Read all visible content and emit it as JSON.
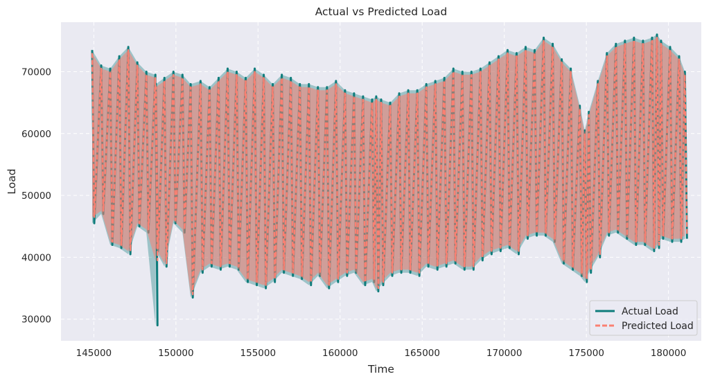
{
  "chart_data": {
    "type": "line",
    "title": "Actual vs Predicted Load",
    "xlabel": "Time",
    "ylabel": "Load",
    "xlim": [
      143000,
      182000
    ],
    "ylim": [
      26500,
      78000
    ],
    "xticks": [
      145000,
      150000,
      155000,
      160000,
      165000,
      170000,
      175000,
      180000
    ],
    "yticks": [
      30000,
      40000,
      50000,
      60000,
      70000
    ],
    "grid": true,
    "legend_position": "bottom-right",
    "series": [
      {
        "name": "Actual Load",
        "color": "#0e7c7b",
        "style": "solid",
        "x": [
          144900,
          145450,
          146000,
          146550,
          147100,
          147650,
          148200,
          148750,
          148780,
          149300,
          149850,
          150400,
          150900,
          151500,
          152050,
          152600,
          153150,
          153700,
          154250,
          154800,
          155350,
          155900,
          156450,
          157000,
          157550,
          158100,
          158650,
          159200,
          159750,
          160300,
          160850,
          161400,
          161950,
          162200,
          162500,
          163050,
          163600,
          164150,
          164700,
          165250,
          165800,
          166350,
          166900,
          167450,
          168000,
          168550,
          169100,
          169650,
          170200,
          170750,
          171300,
          171850,
          172400,
          172950,
          173500,
          174050,
          174600,
          174900,
          175150,
          175700,
          176250,
          176800,
          177350,
          177900,
          178450,
          179000,
          179300,
          179550,
          180100,
          180650,
          181000
        ],
        "low": [
          45500,
          47000,
          42000,
          41500,
          40500,
          45000,
          44000,
          29000,
          41000,
          38500,
          45500,
          44000,
          33500,
          37500,
          38500,
          38000,
          38500,
          38000,
          36000,
          35500,
          35000,
          36000,
          37500,
          37000,
          36500,
          35500,
          37000,
          35000,
          36000,
          37000,
          37500,
          35500,
          36000,
          34500,
          35500,
          37000,
          37500,
          37500,
          37000,
          38500,
          38000,
          38500,
          39000,
          38000,
          38000,
          39500,
          40500,
          41000,
          41500,
          40500,
          43000,
          43500,
          43500,
          42500,
          39000,
          38000,
          37000,
          36000,
          37500,
          40000,
          43500,
          44000,
          43000,
          42000,
          42000,
          41000,
          41500,
          43000,
          42500,
          42500,
          43000
        ],
        "high": [
          73500,
          71000,
          70500,
          72500,
          74000,
          71500,
          70000,
          69500,
          68000,
          69000,
          70000,
          69500,
          68000,
          68500,
          67500,
          69000,
          70500,
          70000,
          69000,
          70500,
          69500,
          68000,
          69500,
          69000,
          68000,
          68000,
          67500,
          67500,
          68500,
          67000,
          66500,
          66000,
          65500,
          66000,
          65500,
          65000,
          66500,
          67000,
          67000,
          68000,
          68500,
          69000,
          70500,
          70000,
          70000,
          70500,
          71500,
          72500,
          73500,
          73000,
          74000,
          73500,
          75500,
          74500,
          72000,
          70500,
          64500,
          60500,
          63500,
          68500,
          73000,
          74500,
          75000,
          75500,
          75000,
          75500,
          76000,
          75000,
          74000,
          72500,
          70000
        ]
      },
      {
        "name": "Predicted Load",
        "color": "#fa8072",
        "style": "dashed",
        "x": [
          144900,
          145450,
          146000,
          146550,
          147100,
          147650,
          148200,
          148750,
          148780,
          149300,
          149850,
          150400,
          150900,
          151500,
          152050,
          152600,
          153150,
          153700,
          154250,
          154800,
          155350,
          155900,
          156450,
          157000,
          157550,
          158100,
          158650,
          159200,
          159750,
          160300,
          160850,
          161400,
          161950,
          162200,
          162500,
          163050,
          163600,
          164150,
          164700,
          165250,
          165800,
          166350,
          166900,
          167450,
          168000,
          168550,
          169100,
          169650,
          170200,
          170750,
          171300,
          171850,
          172400,
          172950,
          173500,
          174050,
          174600,
          174900,
          175150,
          175700,
          176250,
          176800,
          177350,
          177900,
          178450,
          179000,
          179300,
          179550,
          180100,
          180650,
          181000
        ],
        "low": [
          46500,
          47500,
          42500,
          42000,
          41000,
          45500,
          44500,
          39500,
          41500,
          39000,
          46000,
          44500,
          34000,
          38000,
          39000,
          38500,
          39000,
          38500,
          36500,
          36000,
          35500,
          36500,
          38000,
          37500,
          37000,
          36000,
          37500,
          35500,
          36500,
          37500,
          38000,
          36000,
          36500,
          35000,
          36000,
          37500,
          38000,
          38000,
          37500,
          39000,
          38500,
          39000,
          39500,
          38500,
          38500,
          40000,
          41000,
          41500,
          42000,
          41000,
          43500,
          44000,
          44000,
          43000,
          39500,
          38500,
          37500,
          36500,
          38000,
          40500,
          44000,
          44500,
          43500,
          42500,
          42500,
          41500,
          42000,
          43500,
          43000,
          43000,
          43500
        ],
        "high": [
          73000,
          70500,
          70000,
          72000,
          73500,
          71000,
          69500,
          69000,
          67500,
          68500,
          69500,
          69000,
          67500,
          68000,
          67000,
          68500,
          70000,
          69500,
          68500,
          70000,
          69000,
          67500,
          69000,
          68500,
          67500,
          67500,
          67000,
          67000,
          68000,
          66500,
          66000,
          65500,
          65000,
          65500,
          65000,
          64500,
          66000,
          66500,
          66500,
          67500,
          68000,
          68500,
          70000,
          69500,
          69500,
          70000,
          71000,
          72000,
          73000,
          72500,
          73500,
          73000,
          75000,
          74000,
          71500,
          70000,
          64000,
          60000,
          63000,
          68000,
          72500,
          74000,
          74500,
          75000,
          74500,
          75000,
          75500,
          74500,
          73500,
          72000,
          69500
        ]
      }
    ]
  }
}
